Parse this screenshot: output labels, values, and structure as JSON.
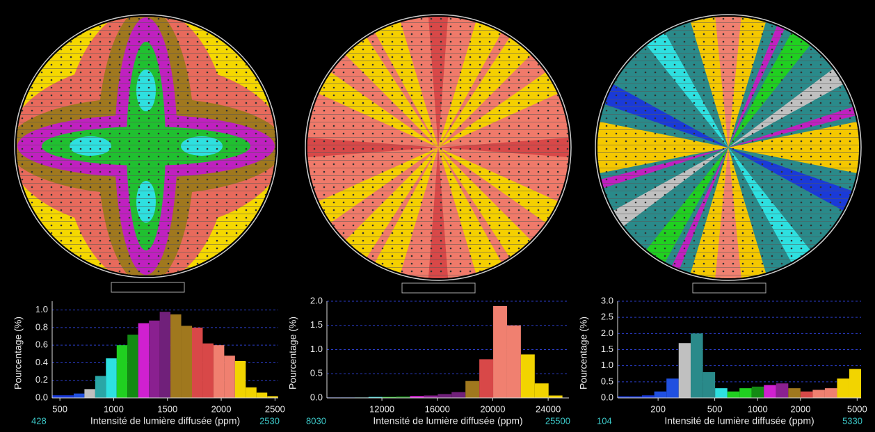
{
  "chart_data": [
    {
      "type": "histogram",
      "y_label": "Pourcentage (%)",
      "x_label": "Intensité de lumière diffusée (ppm)",
      "bins": [
        428,
        528,
        628,
        728,
        828,
        928,
        1028,
        1128,
        1228,
        1328,
        1428,
        1528,
        1628,
        1728,
        1828,
        1928,
        2028,
        2128,
        2228,
        2328,
        2428,
        2528
      ],
      "values": [
        0.03,
        0.03,
        0.05,
        0.1,
        0.25,
        0.45,
        0.6,
        0.72,
        0.85,
        0.88,
        0.98,
        0.95,
        0.82,
        0.8,
        0.62,
        0.6,
        0.48,
        0.42,
        0.12,
        0.06,
        0.02
      ],
      "colors": [
        "#1a3ad8",
        "#1a3ad8",
        "#2050e0",
        "#c0c0c0",
        "#2aa6a6",
        "#2ee0e0",
        "#20d020",
        "#138a13",
        "#d020d0",
        "#8a2090",
        "#70207a",
        "#a0781e",
        "#a0781e",
        "#d84848",
        "#d84848",
        "#f08070",
        "#f08070",
        "#f2d400",
        "#f2d400",
        "#f2d400",
        "#f2d400"
      ],
      "xlim": [
        428,
        2530
      ],
      "ylim": [
        0,
        1.1
      ],
      "xticks": [
        500,
        1000,
        1500,
        2000,
        2500
      ],
      "yticks": [
        {
          "value": 0,
          "label": "0.0"
        },
        {
          "value": 0.2,
          "label": "0.2"
        },
        {
          "value": 0.4,
          "label": "0.4"
        },
        {
          "value": 0.6,
          "label": "0.6"
        },
        {
          "value": 0.8,
          "label": "0.8"
        },
        {
          "value": 1,
          "label": "1.0"
        }
      ],
      "grid": true,
      "log_x": false
    },
    {
      "type": "histogram",
      "y_label": "Pourcentage (%)",
      "x_label": "Intensité de lumière diffusée (ppm)",
      "bins": [
        8030,
        9030,
        10030,
        11030,
        12030,
        13030,
        14030,
        15030,
        16030,
        17030,
        18030,
        19030,
        20030,
        21030,
        22030,
        23030,
        24030,
        25030
      ],
      "values": [
        0.01,
        0.01,
        0.01,
        0.02,
        0.02,
        0.03,
        0.04,
        0.05,
        0.08,
        0.12,
        0.35,
        0.8,
        1.9,
        1.5,
        0.9,
        0.3,
        0.05
      ],
      "colors": [
        "#1a3ad8",
        "#2050e0",
        "#2aa6a6",
        "#2ee0e0",
        "#20d020",
        "#138a13",
        "#d020d0",
        "#8a2090",
        "#70207a",
        "#70207a",
        "#a0781e",
        "#d84848",
        "#f08070",
        "#f08070",
        "#f2d400",
        "#f2d400",
        "#f2d400"
      ],
      "xlim": [
        8030,
        25500
      ],
      "ylim": [
        0,
        2.0
      ],
      "xticks": [
        12000,
        16000,
        20000,
        24000
      ],
      "yticks": [
        {
          "value": 0,
          "label": "0.0"
        },
        {
          "value": 0.5,
          "label": "0.5"
        },
        {
          "value": 1,
          "label": "1.0"
        },
        {
          "value": 1.5,
          "label": "1.5"
        },
        {
          "value": 2,
          "label": "2.0"
        }
      ],
      "grid": true,
      "log_x": false
    },
    {
      "type": "histogram",
      "y_label": "Pourcentage (%)",
      "x_label": "Intensité de lumière diffusée (ppm)",
      "bins": [
        104,
        127,
        154,
        188,
        229,
        279,
        339,
        413,
        503,
        613,
        746,
        909,
        1107,
        1348,
        1642,
        2000,
        2436,
        2967,
        3614,
        4402,
        5330
      ],
      "values": [
        0.05,
        0.05,
        0.08,
        0.2,
        0.6,
        1.7,
        2.0,
        0.8,
        0.3,
        0.2,
        0.3,
        0.35,
        0.4,
        0.45,
        0.3,
        0.2,
        0.25,
        0.3,
        0.6,
        0.9
      ],
      "colors": [
        "#1a3ad8",
        "#1a3ad8",
        "#1a3ad8",
        "#2050e0",
        "#2050e0",
        "#c0c0c0",
        "#2a8a8a",
        "#2a8a8a",
        "#2ee0e0",
        "#20d020",
        "#20d020",
        "#138a13",
        "#d020d0",
        "#8a2090",
        "#a0781e",
        "#d84848",
        "#f08070",
        "#f08070",
        "#f2d400",
        "#f2d400"
      ],
      "xlim": [
        104,
        5330
      ],
      "ylim": [
        0,
        3.0
      ],
      "xticks": [
        200,
        500,
        1000,
        2000,
        5000
      ],
      "yticks": [
        {
          "value": 0,
          "label": "0.0"
        },
        {
          "value": 0.5,
          "label": "0.5"
        },
        {
          "value": 1,
          "label": "1.0"
        },
        {
          "value": 1.5,
          "label": "1.5"
        },
        {
          "value": 2,
          "label": "2.0"
        },
        {
          "value": 2.5,
          "label": "2.5"
        },
        {
          "value": 3,
          "label": "3.0"
        }
      ],
      "grid": true,
      "log_x": true
    }
  ]
}
